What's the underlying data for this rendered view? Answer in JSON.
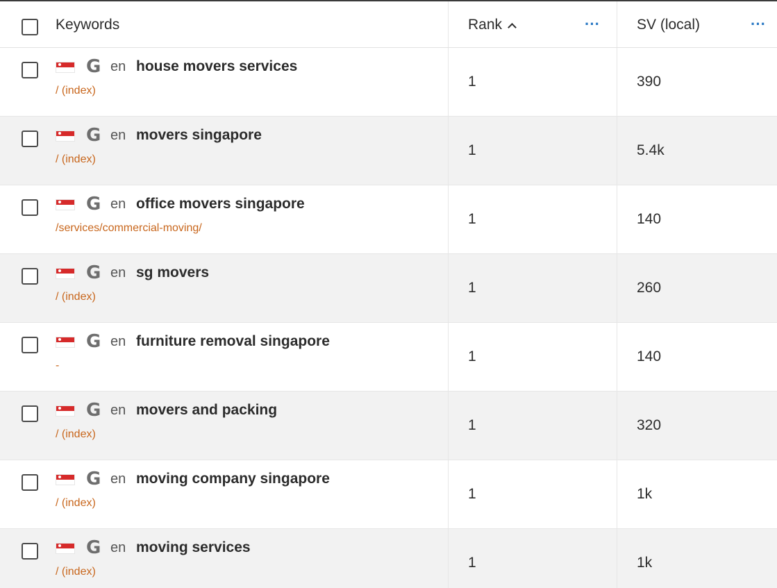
{
  "header": {
    "keywords_label": "Keywords",
    "rank_label": "Rank",
    "sv_label": "SV (local)",
    "more_glyph": "···"
  },
  "sort_icon": "chevron-up-icon",
  "more_icon": "more-horizontal-icon",
  "row_meta": {
    "flag_icon": "singapore-flag-icon",
    "search_engine_icon": "google-g-icon",
    "search_engine_glyph": "G"
  },
  "rows": [
    {
      "lang": "en",
      "keyword": "house movers services",
      "url": "/ (index)",
      "rank": "1",
      "sv": "390"
    },
    {
      "lang": "en",
      "keyword": "movers singapore",
      "url": "/ (index)",
      "rank": "1",
      "sv": "5.4k"
    },
    {
      "lang": "en",
      "keyword": "office movers singapore",
      "url": "/services/commercial-moving/",
      "rank": "1",
      "sv": "140"
    },
    {
      "lang": "en",
      "keyword": "sg movers",
      "url": "/ (index)",
      "rank": "1",
      "sv": "260"
    },
    {
      "lang": "en",
      "keyword": "furniture removal singapore",
      "url": "-",
      "rank": "1",
      "sv": "140"
    },
    {
      "lang": "en",
      "keyword": "movers and packing",
      "url": "/ (index)",
      "rank": "1",
      "sv": "320"
    },
    {
      "lang": "en",
      "keyword": "moving company singapore",
      "url": "/ (index)",
      "rank": "1",
      "sv": "1k"
    },
    {
      "lang": "en",
      "keyword": "moving services",
      "url": "/ (index)",
      "rank": "1",
      "sv": "1k"
    }
  ],
  "colors": {
    "url": "#c8661c",
    "more_icon": "#2a78c4",
    "flag_red": "#d62a2a",
    "row_alt_bg": "#f2f2f2"
  }
}
